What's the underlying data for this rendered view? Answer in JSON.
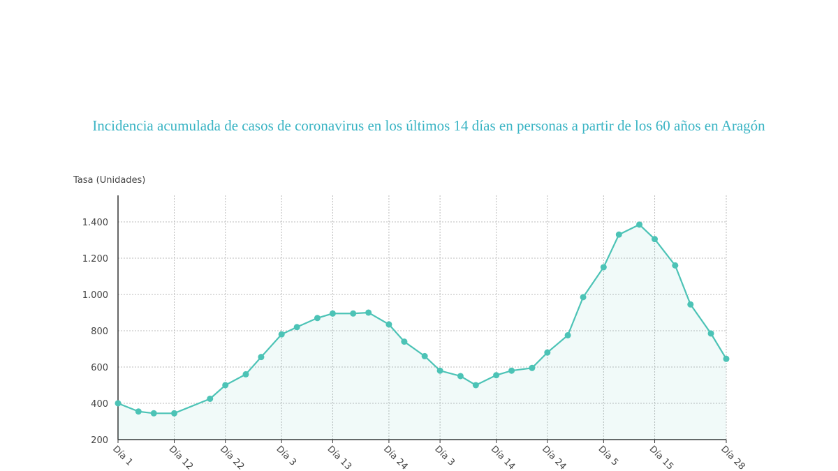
{
  "chart_data": {
    "type": "line",
    "title": "Incidencia acumulada de casos de coronavirus en los últimos 14 días en personas a partir de los 60 años en Aragón",
    "y_label": "Tasa (Unidades)",
    "x": [
      0,
      4,
      7,
      11,
      18,
      21,
      25,
      28,
      32,
      35,
      39,
      42,
      46,
      49,
      53,
      56,
      60,
      63,
      67,
      70,
      74,
      77,
      81,
      84,
      88,
      91,
      95,
      98,
      102,
      105,
      109,
      112,
      116,
      119
    ],
    "series": [
      {
        "name": "Tasa",
        "color": "#4cc3b6",
        "values": [
          400,
          355,
          345,
          345,
          425,
          500,
          560,
          655,
          780,
          820,
          870,
          895,
          895,
          900,
          835,
          740,
          660,
          580,
          550,
          500,
          555,
          580,
          595,
          680,
          775,
          985,
          1150,
          1330,
          1385,
          1305,
          1160,
          945,
          785,
          645
        ]
      }
    ],
    "xlim": [
      0,
      119
    ],
    "xticks": [
      {
        "value": 0,
        "label": "Día 1"
      },
      {
        "value": 11,
        "label": "Día 12"
      },
      {
        "value": 21,
        "label": "Día 22"
      },
      {
        "value": 32,
        "label": "Día 3"
      },
      {
        "value": 42,
        "label": "Día 13"
      },
      {
        "value": 53,
        "label": "Día 24"
      },
      {
        "value": 63,
        "label": "Día 3"
      },
      {
        "value": 74,
        "label": "Día 14"
      },
      {
        "value": 84,
        "label": "Día 24"
      },
      {
        "value": 95,
        "label": "Día 5"
      },
      {
        "value": 105,
        "label": "Día 15"
      },
      {
        "value": 119,
        "label": "Día 28"
      }
    ],
    "ylim": [
      200,
      1546
    ],
    "yticks": [
      200,
      {
        "value": 400,
        "label": "400"
      },
      600,
      800,
      {
        "value": 1000,
        "label": "1.000"
      },
      {
        "value": 1200,
        "label": "1.200"
      },
      {
        "value": 1400,
        "label": "1.400"
      }
    ],
    "grid": true
  }
}
